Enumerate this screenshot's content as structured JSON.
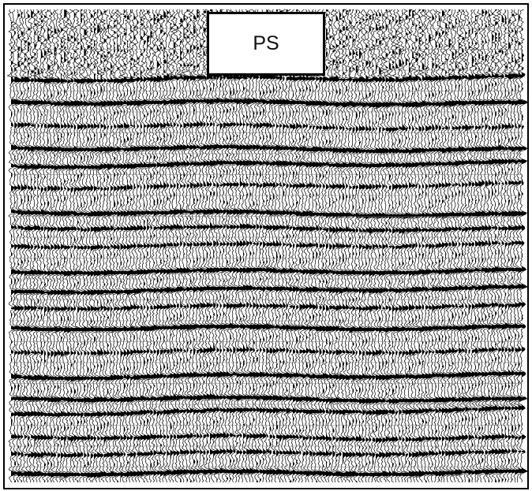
{
  "label": "PS"
}
